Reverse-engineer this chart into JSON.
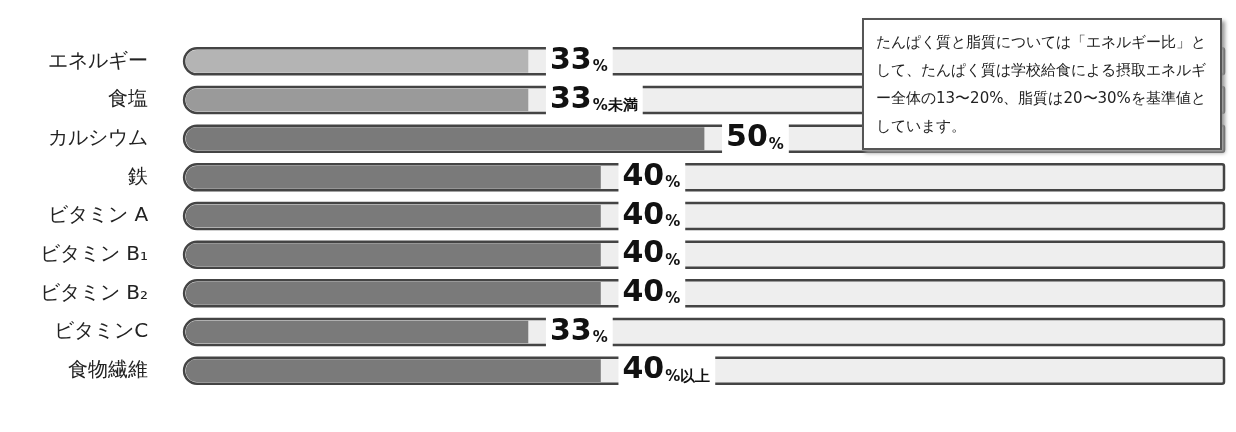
{
  "chart_data": {
    "type": "bar",
    "orientation": "horizontal",
    "categories": [
      "エネルギー",
      "食塩",
      "カルシウム",
      "鉄",
      "ビタミン A",
      "ビタミン B₁",
      "ビタミン B₂",
      "ビタミンC",
      "食物繊維"
    ],
    "values": [
      33,
      33,
      50,
      40,
      40,
      40,
      40,
      33,
      40
    ],
    "colors": [
      "#b4b4b4",
      "#9a9a9a",
      "#7a7a7a",
      "#7a7a7a",
      "#7a7a7a",
      "#7a7a7a",
      "#7a7a7a",
      "#7a7a7a",
      "#7a7a7a"
    ],
    "value_labels": [
      "33%",
      "33%未満",
      "50%",
      "40%",
      "40%",
      "40%",
      "40%",
      "33%",
      "40%以上"
    ],
    "xlim": [
      0,
      100
    ],
    "tick_labels": "y",
    "legend": false,
    "annotations": [
      "たんぱく質と脂質については「エネルギー比」として、たんぱく質は学校給食による摂取エネルギー全体の13〜20%、脂質は20〜30%を基準値としています。"
    ]
  }
}
